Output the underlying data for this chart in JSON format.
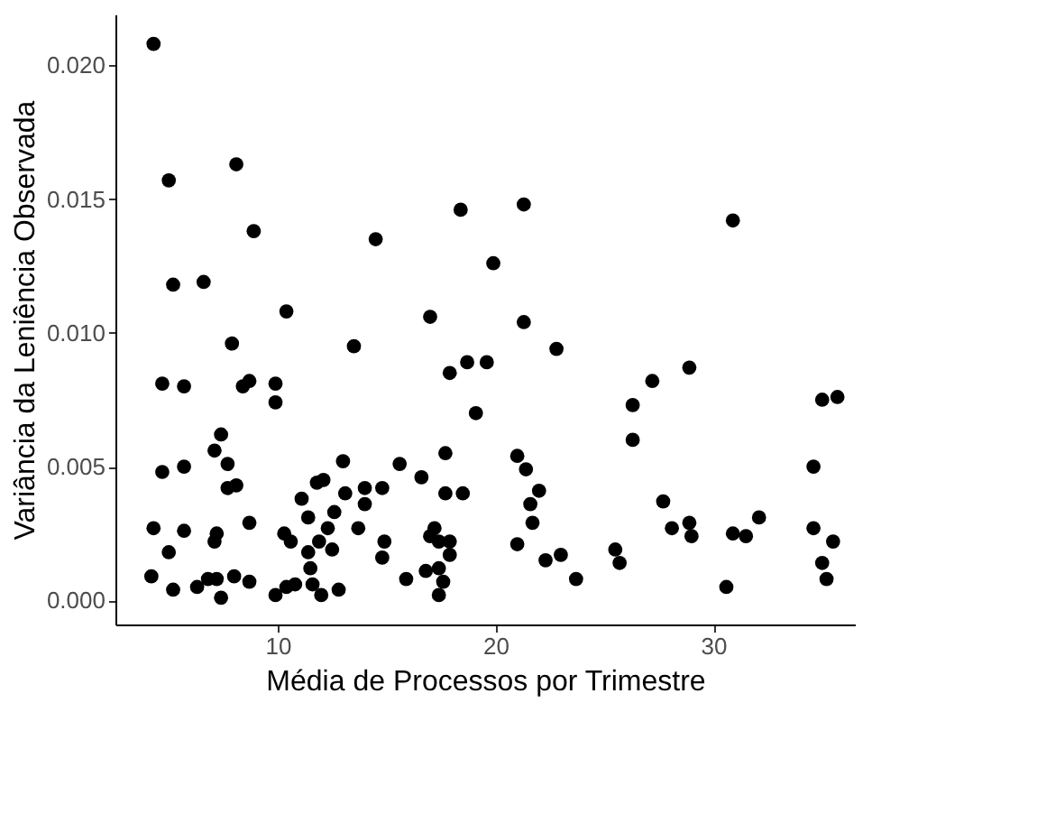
{
  "chart_data": {
    "type": "scatter",
    "xlabel": "Média de Processos por Trimestre",
    "ylabel": "Variância da Leniência Observada",
    "xlim": [
      2.55,
      36.5
    ],
    "ylim": [
      -0.0009,
      0.0219
    ],
    "xticks": [
      10,
      20,
      30
    ],
    "yticks": [
      {
        "value": 0,
        "label": "0.000"
      },
      {
        "value": 0.005,
        "label": "0.005"
      },
      {
        "value": 0.01,
        "label": "0.010"
      },
      {
        "value": 0.015,
        "label": "0.015"
      },
      {
        "value": 0.02,
        "label": "0.020"
      }
    ],
    "grid": false,
    "marker": "circle",
    "series": [
      {
        "color": "#000000",
        "x": [
          4.3,
          5.0,
          8.1,
          8.9,
          5.2,
          6.6,
          10.4,
          14.5,
          18.4,
          21.3,
          30.9,
          19.9,
          22.8,
          13.5,
          7.9,
          21.3,
          4.7,
          5.7,
          8.4,
          8.7,
          9.9,
          9.9,
          17.0,
          17.9,
          18.7,
          19.6,
          19.1,
          7.4,
          7.1,
          7.7,
          7.7,
          8.1,
          4.7,
          5.7,
          4.3,
          5.7,
          5.0,
          4.2,
          5.2,
          6.3,
          6.8,
          7.2,
          7.4,
          7.1,
          7.2,
          8.0,
          8.7,
          8.7,
          9.9,
          10.4,
          10.8,
          10.3,
          10.6,
          11.1,
          11.4,
          11.4,
          11.5,
          11.6,
          12.0,
          11.8,
          12.1,
          11.9,
          12.3,
          12.5,
          12.6,
          12.8,
          13.0,
          13.1,
          13.7,
          14.0,
          14.0,
          14.8,
          14.9,
          14.8,
          15.6,
          15.9,
          16.6,
          16.8,
          17.2,
          17.0,
          17.4,
          17.9,
          17.9,
          17.4,
          17.6,
          17.4,
          17.7,
          17.7,
          18.5,
          21.0,
          21.4,
          22.0,
          21.6,
          21.7,
          21.0,
          22.3,
          23.0,
          23.7,
          25.5,
          25.7,
          26.3,
          26.3,
          27.2,
          28.9,
          27.7,
          28.1,
          28.9,
          29.0,
          30.9,
          31.5,
          32.1,
          30.6,
          34.6,
          35.0,
          35.7,
          34.6,
          35.5,
          35.0,
          35.2
        ],
        "values": [
          0.0208,
          0.0157,
          0.0163,
          0.0138,
          0.0118,
          0.0119,
          0.0108,
          0.0135,
          0.0146,
          0.0148,
          0.0142,
          0.0126,
          0.0094,
          0.0095,
          0.0096,
          0.0104,
          0.0081,
          0.008,
          0.008,
          0.0082,
          0.0081,
          0.0074,
          0.0106,
          0.0085,
          0.0089,
          0.0089,
          0.007,
          0.0062,
          0.0056,
          0.0051,
          0.0042,
          0.0043,
          0.0048,
          0.005,
          0.0027,
          0.0026,
          0.0018,
          0.0009,
          0.0004,
          0.0005,
          0.0008,
          0.0008,
          0.0001,
          0.0022,
          0.0025,
          0.0009,
          0.0007,
          0.0029,
          0.0002,
          0.0005,
          0.0006,
          0.0025,
          0.0022,
          0.0038,
          0.0031,
          0.0018,
          0.0012,
          0.0006,
          0.0002,
          0.0044,
          0.0045,
          0.0022,
          0.0027,
          0.0019,
          0.0033,
          0.0004,
          0.0052,
          0.004,
          0.0027,
          0.0042,
          0.0036,
          0.0042,
          0.0022,
          0.0016,
          0.0051,
          0.0008,
          0.0046,
          0.0011,
          0.0027,
          0.0024,
          0.0022,
          0.0022,
          0.0017,
          0.0012,
          0.0007,
          0.0002,
          0.0055,
          0.004,
          0.004,
          0.0054,
          0.0049,
          0.0041,
          0.0036,
          0.0029,
          0.0021,
          0.0015,
          0.0017,
          0.0008,
          0.0019,
          0.0014,
          0.0073,
          0.006,
          0.0082,
          0.0087,
          0.0037,
          0.0027,
          0.0029,
          0.0024,
          0.0025,
          0.0024,
          0.0031,
          0.0005,
          0.005,
          0.0075,
          0.0076,
          0.0027,
          0.0022,
          0.0014,
          0.0008
        ]
      }
    ]
  }
}
